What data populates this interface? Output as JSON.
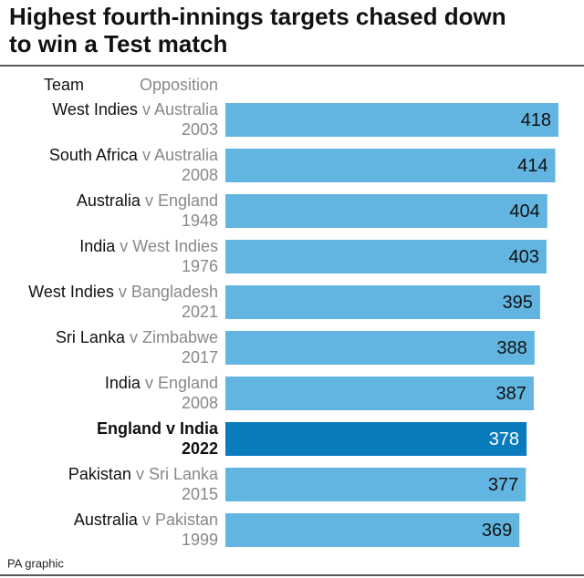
{
  "chart_data": {
    "type": "bar",
    "orientation": "horizontal",
    "title": [
      "Highest fourth-innings targets chased down",
      "to win a Test match"
    ],
    "header": {
      "team": "Team",
      "opposition": "Opposition"
    },
    "teams": [
      "West Indies",
      "South Africa",
      "Australia",
      "India",
      "West Indies",
      "Sri Lanka",
      "India",
      "England",
      "Pakistan",
      "Australia"
    ],
    "oppositions": [
      "v Australia",
      "v Australia",
      "v England",
      "v West Indies",
      "v Bangladesh",
      "v Zimbabwe",
      "v England",
      "v India",
      "v Sri Lanka",
      "v Pakistan"
    ],
    "years": [
      "2003",
      "2008",
      "1948",
      "1976",
      "2021",
      "2017",
      "2008",
      "2022",
      "2015",
      "1999"
    ],
    "values": [
      418,
      414,
      404,
      403,
      395,
      388,
      387,
      378,
      377,
      369
    ],
    "color": "#63b5e1",
    "highlight_color": "#0a7bbd",
    "highlight": 7,
    "footer": "PA graphic"
  }
}
